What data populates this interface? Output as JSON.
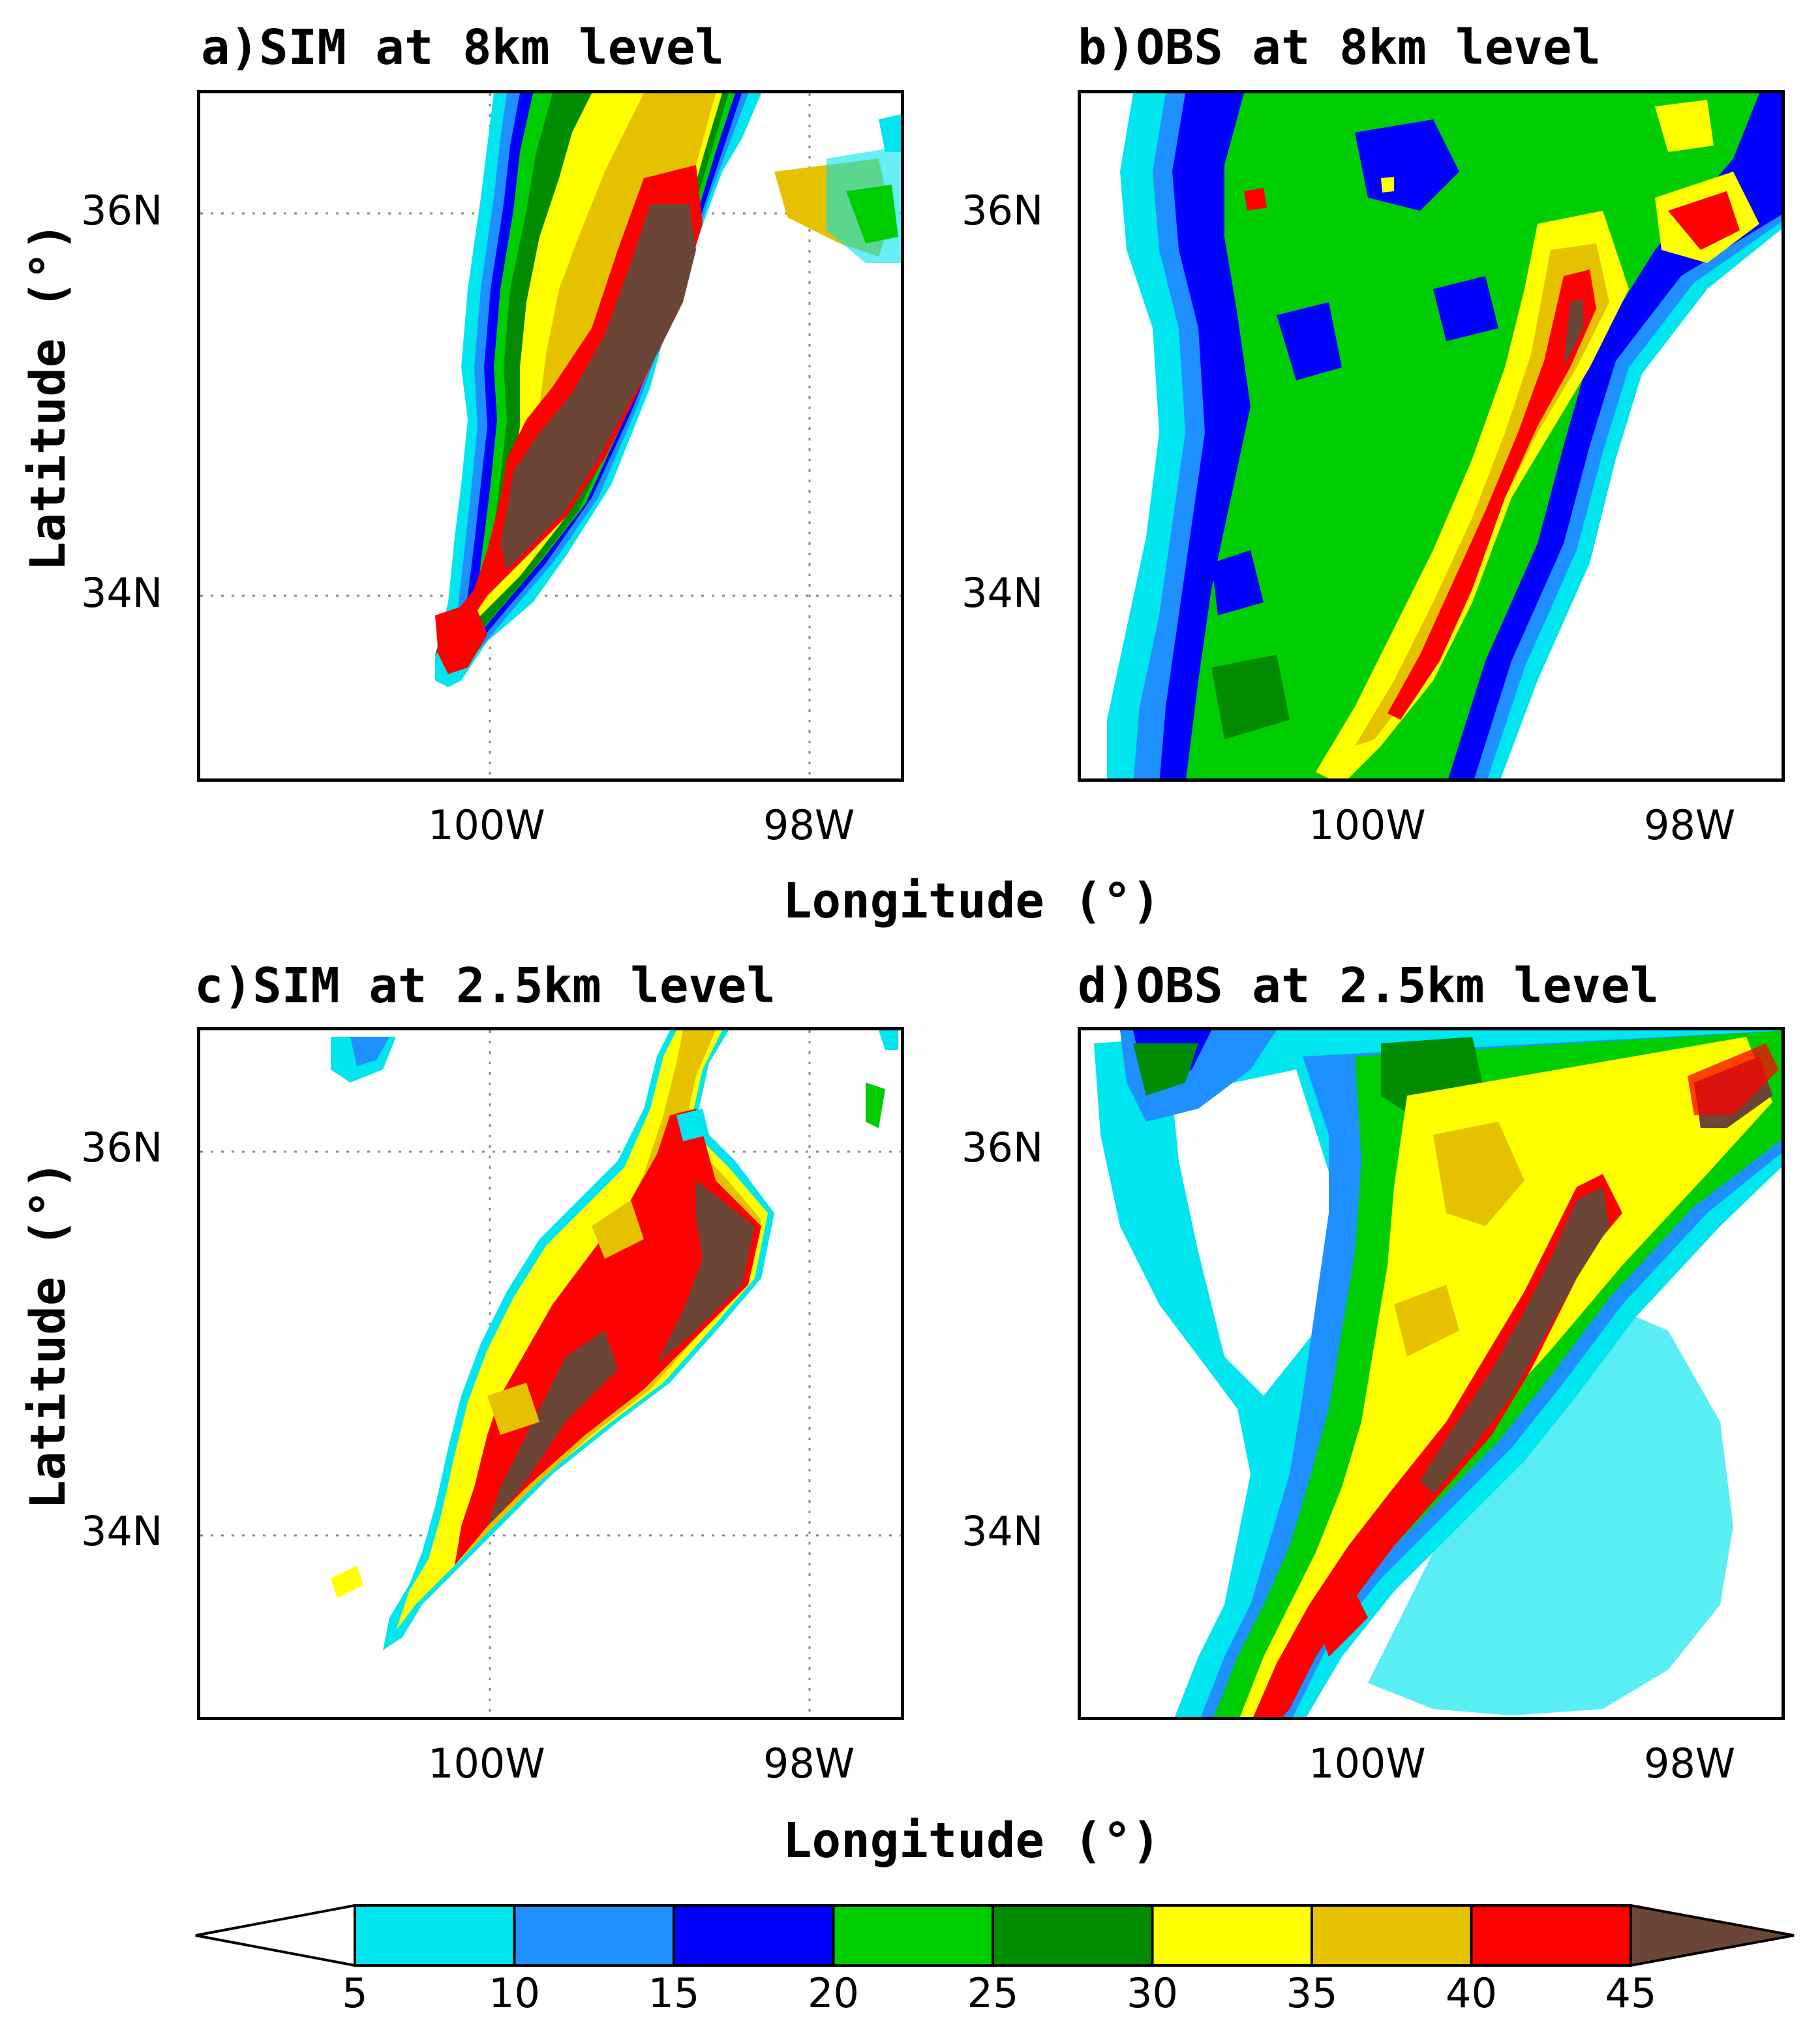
{
  "panels": {
    "a": {
      "title": "a)SIM at 8km level",
      "lat_ticks": [
        "36N",
        "34N"
      ],
      "lon_ticks": [
        "100W",
        "98W"
      ]
    },
    "b": {
      "title": "b)OBS at 8km level",
      "lat_ticks": [
        "36N",
        "34N"
      ],
      "lon_ticks": [
        "100W",
        "98W"
      ]
    },
    "c": {
      "title": "c)SIM at 2.5km level",
      "lat_ticks": [
        "36N",
        "34N"
      ],
      "lon_ticks": [
        "100W",
        "98W"
      ]
    },
    "d": {
      "title": "d)OBS at 2.5km level",
      "lat_ticks": [
        "36N",
        "34N"
      ],
      "lon_ticks": [
        "100W",
        "98W"
      ]
    }
  },
  "axes": {
    "ylabel": "Latitude (°)",
    "xlabel": "Longitude (°)"
  },
  "colorbar": {
    "labels": [
      "5",
      "10",
      "15",
      "20",
      "25",
      "30",
      "35",
      "40",
      "45"
    ],
    "colors": [
      "#ffffff",
      "#00e5ee",
      "#1e90ff",
      "#0000ff",
      "#00cd00",
      "#008b00",
      "#ffff00",
      "#e5c100",
      "#ff0000",
      "#6b4636"
    ]
  }
}
